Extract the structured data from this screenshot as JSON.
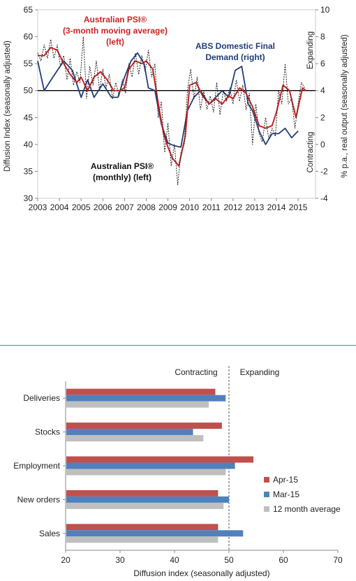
{
  "chart_data": [
    {
      "type": "line",
      "title": "",
      "left_axis": {
        "label": "Diffusion Index (seasonally adjusted)",
        "range": [
          30,
          65
        ],
        "ticks": [
          "30",
          "35",
          "40",
          "45",
          "50",
          "55",
          "60",
          "65"
        ]
      },
      "right_axis": {
        "label": "% p.a., real output (seasonally adjusted)",
        "range": [
          -4,
          10
        ],
        "ticks": [
          "-4",
          "-2",
          "0",
          "2",
          "4",
          "6",
          "8",
          "10"
        ]
      },
      "x_axis": {
        "range": [
          2003,
          2015.8
        ],
        "ticks": [
          "2003",
          "2004",
          "2005",
          "2006",
          "2007",
          "2008",
          "2009",
          "2010",
          "2011",
          "2012",
          "2013",
          "2014",
          "2015"
        ]
      },
      "reference_line": {
        "axis": "left",
        "value": 50
      },
      "side_labels": {
        "expanding": "Expanding",
        "contracting": "Contracting"
      },
      "annotations": {
        "psi_ma": [
          "Australian PSI®",
          "(3-month moving average)",
          "(left)"
        ],
        "abs": [
          "ABS Domestic Final",
          "Demand (right)"
        ],
        "psi_monthly": [
          "Australian PSI®",
          "(monthly) (left)"
        ]
      },
      "colors": {
        "psi_ma": "#cc2222",
        "abs": "#1f3d7a",
        "psi_monthly": "#222222"
      },
      "series": [
        {
          "key": "psi_ma",
          "axis": "left",
          "x": [
            2003.0,
            2003.3,
            2003.6,
            2003.9,
            2004.2,
            2004.5,
            2004.8,
            2005.0,
            2005.3,
            2005.6,
            2005.9,
            2006.2,
            2006.5,
            2006.8,
            2007.0,
            2007.2,
            2007.5,
            2007.8,
            2008.0,
            2008.3,
            2008.6,
            2008.8,
            2009.0,
            2009.2,
            2009.5,
            2009.8,
            2010.0,
            2010.3,
            2010.6,
            2010.9,
            2011.2,
            2011.5,
            2011.8,
            2012.0,
            2012.3,
            2012.6,
            2012.9,
            2013.2,
            2013.5,
            2013.8,
            2014.0,
            2014.3,
            2014.6,
            2014.9,
            2015.2,
            2015.35
          ],
          "y": [
            56.5,
            56.5,
            58.0,
            57.5,
            55.0,
            53.0,
            51.5,
            52.5,
            50.0,
            52.5,
            53.5,
            52.0,
            50.0,
            50.0,
            50.5,
            54.0,
            55.5,
            55.0,
            55.5,
            54.0,
            46.5,
            42.0,
            39.5,
            37.5,
            36.0,
            41.5,
            51.0,
            51.5,
            49.0,
            47.5,
            48.5,
            47.5,
            49.0,
            48.5,
            50.5,
            49.5,
            47.0,
            43.5,
            43.0,
            43.5,
            46.0,
            51.0,
            50.0,
            45.0,
            50.5,
            50.0
          ]
        },
        {
          "key": "abs",
          "axis": "right",
          "x": [
            2003.0,
            2003.3,
            2003.7,
            2004.2,
            2004.6,
            2005.0,
            2005.3,
            2005.6,
            2006.0,
            2006.4,
            2006.7,
            2007.0,
            2007.3,
            2007.6,
            2007.9,
            2008.1,
            2008.4,
            2008.7,
            2009.0,
            2009.3,
            2009.6,
            2009.9,
            2010.2,
            2010.5,
            2010.9,
            2011.2,
            2011.5,
            2011.8,
            2012.1,
            2012.4,
            2012.7,
            2012.9,
            2013.2,
            2013.5,
            2013.8,
            2014.1,
            2014.4,
            2014.7,
            2015.0
          ],
          "y": [
            6.2,
            4.0,
            5.0,
            6.2,
            5.5,
            3.5,
            4.8,
            3.5,
            4.5,
            3.5,
            3.5,
            5.0,
            6.2,
            6.8,
            6.0,
            4.2,
            4.0,
            1.5,
            0.1,
            -0.1,
            -0.2,
            2.5,
            3.5,
            4.0,
            3.0,
            3.5,
            4.0,
            3.5,
            5.5,
            5.8,
            3.0,
            2.5,
            1.0,
            0.0,
            0.8,
            0.8,
            1.2,
            0.5,
            1.0
          ]
        },
        {
          "key": "psi_monthly",
          "axis": "left",
          "x": [
            2003.0,
            2003.15,
            2003.3,
            2003.45,
            2003.6,
            2003.75,
            2003.9,
            2004.05,
            2004.2,
            2004.35,
            2004.5,
            2004.65,
            2004.8,
            2004.95,
            2005.1,
            2005.25,
            2005.4,
            2005.55,
            2005.7,
            2005.85,
            2006.0,
            2006.15,
            2006.3,
            2006.45,
            2006.6,
            2006.75,
            2006.9,
            2007.05,
            2007.2,
            2007.35,
            2007.5,
            2007.65,
            2007.8,
            2007.95,
            2008.1,
            2008.25,
            2008.4,
            2008.55,
            2008.7,
            2008.85,
            2009.0,
            2009.15,
            2009.3,
            2009.45,
            2009.6,
            2009.75,
            2009.9,
            2010.05,
            2010.2,
            2010.35,
            2010.5,
            2010.65,
            2010.8,
            2010.95,
            2011.1,
            2011.25,
            2011.4,
            2011.55,
            2011.7,
            2011.85,
            2012.0,
            2012.15,
            2012.3,
            2012.45,
            2012.6,
            2012.75,
            2012.9,
            2013.05,
            2013.2,
            2013.35,
            2013.5,
            2013.65,
            2013.8,
            2013.95,
            2014.1,
            2014.25,
            2014.4,
            2014.55,
            2014.7,
            2014.85,
            2015.0,
            2015.15,
            2015.3
          ],
          "y": [
            57.0,
            55.5,
            58.5,
            56.0,
            59.5,
            56.0,
            58.5,
            54.5,
            56.5,
            52.0,
            56.0,
            51.0,
            53.5,
            51.5,
            60.0,
            48.5,
            54.5,
            51.0,
            55.5,
            50.0,
            54.0,
            50.5,
            53.0,
            48.5,
            51.5,
            49.0,
            52.0,
            49.5,
            55.0,
            52.5,
            57.0,
            53.0,
            56.5,
            53.5,
            57.5,
            52.5,
            55.0,
            45.0,
            48.0,
            38.5,
            44.0,
            36.0,
            40.0,
            32.5,
            38.5,
            40.0,
            50.0,
            54.0,
            48.5,
            52.5,
            46.5,
            50.0,
            46.5,
            49.0,
            46.0,
            51.5,
            45.5,
            50.0,
            48.0,
            50.5,
            47.5,
            52.0,
            48.0,
            51.0,
            46.5,
            49.5,
            40.0,
            47.5,
            42.0,
            40.5,
            45.0,
            41.0,
            43.0,
            41.5,
            50.0,
            47.5,
            55.0,
            47.5,
            48.5,
            43.0,
            47.5,
            51.5,
            50.5
          ]
        }
      ]
    },
    {
      "type": "bar",
      "orientation": "horizontal",
      "title": "",
      "categories": [
        "Deliveries",
        "Stocks",
        "Employment",
        "New orders",
        "Sales"
      ],
      "series": [
        {
          "name": "Apr-15",
          "color": "#c0504d",
          "values": [
            47.5,
            48.7,
            54.5,
            48.0,
            48.0
          ]
        },
        {
          "name": "Mar-15",
          "color": "#4f81bd",
          "values": [
            49.4,
            43.4,
            51.1,
            50.0,
            52.6
          ]
        },
        {
          "name": "12 month average",
          "color": "#bfbfbf",
          "values": [
            46.3,
            45.3,
            49.4,
            49.0,
            48.0
          ]
        }
      ],
      "xlabel": "Diffusion index (seasonally adjusted)",
      "xlim": [
        20,
        70
      ],
      "x_ticks": [
        "20",
        "30",
        "40",
        "50",
        "60",
        "70"
      ],
      "threshold": 50,
      "zone_labels": {
        "contracting": "Contracting",
        "expanding": "Expanding"
      },
      "legend_position": "right"
    }
  ]
}
